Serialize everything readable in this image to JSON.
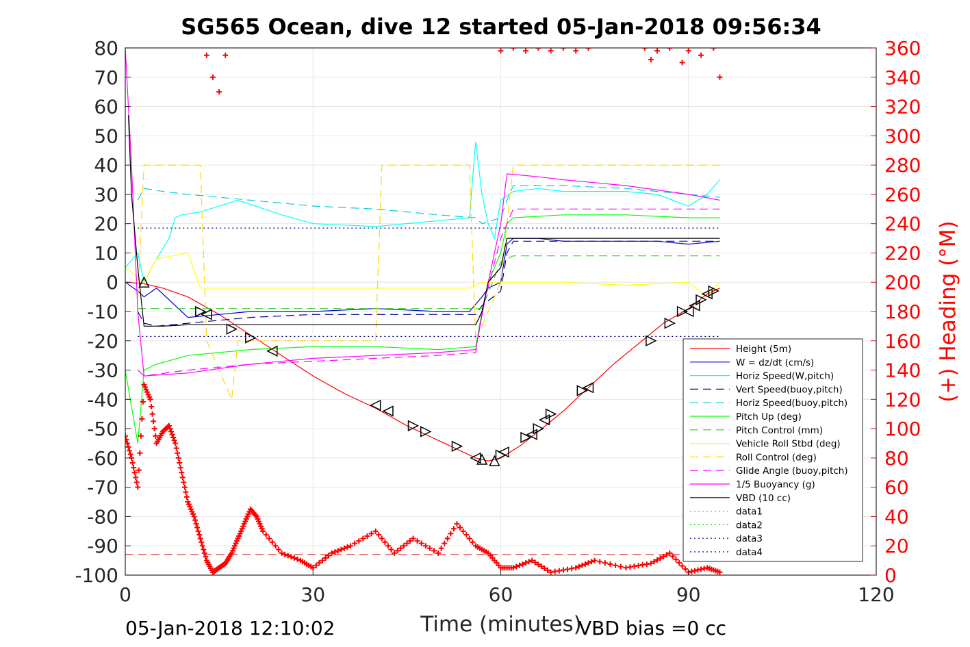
{
  "chart_data": {
    "type": "line",
    "title": "SG565 Ocean, dive 12 started 05-Jan-2018 09:56:34",
    "xlabel": "Time (minutes)",
    "ylabel": "",
    "ylabel_right": "(+) Heading (°M)",
    "xlim": [
      0,
      120
    ],
    "ylim": [
      -100,
      80
    ],
    "ylim_right": [
      0,
      360
    ],
    "xticks": [
      0,
      30,
      60,
      90,
      120
    ],
    "yticks": [
      -100,
      -90,
      -80,
      -70,
      -60,
      -50,
      -40,
      -30,
      -20,
      -10,
      0,
      10,
      20,
      30,
      40,
      50,
      60,
      70,
      80
    ],
    "yticks_right": [
      0,
      20,
      40,
      60,
      80,
      100,
      120,
      140,
      160,
      180,
      200,
      220,
      240,
      260,
      280,
      300,
      320,
      340,
      360
    ],
    "grid": true,
    "legend_position": "bottom-right",
    "footer_left": "05-Jan-2018 12:10:02",
    "footer_right": "VBD bias =0 cc",
    "series": [
      {
        "name": "Height (5m)",
        "color": "#ff0000",
        "style": "solid",
        "x": [
          0,
          3,
          6,
          10,
          15,
          20,
          25,
          30,
          35,
          40,
          45,
          50,
          54,
          56,
          58,
          60,
          63,
          66,
          70,
          74,
          78,
          82,
          86,
          90,
          93,
          95
        ],
        "y": [
          0,
          -0.5,
          -2,
          -5,
          -11,
          -18,
          -25,
          -32,
          -38,
          -43,
          -49,
          -54,
          -58,
          -60,
          -61,
          -60,
          -56,
          -51,
          -44,
          -36,
          -28,
          -21,
          -14,
          -9,
          -4,
          -2
        ]
      },
      {
        "name": "W = dz/dt (cm/s)",
        "color": "#0000cd",
        "style": "solid",
        "x": [
          0,
          2,
          3,
          5,
          8,
          10,
          15,
          20,
          30,
          40,
          50,
          55,
          57,
          58,
          60,
          61,
          62,
          66,
          70,
          80,
          85,
          90,
          95
        ],
        "y": [
          0,
          -3,
          -5,
          -2,
          -8,
          -12,
          -11,
          -10,
          -10,
          -9,
          -10,
          -10,
          -5,
          -2,
          0,
          13,
          15,
          15,
          14,
          14,
          14,
          13,
          14
        ]
      },
      {
        "name": "Horiz Speed(W,pitch)",
        "color": "#00ffff",
        "style": "solid",
        "x": [
          0,
          2,
          3,
          5,
          7,
          8,
          9,
          12,
          18,
          25,
          30,
          40,
          50,
          55,
          56,
          57,
          58,
          59,
          60,
          62,
          66,
          70,
          80,
          85,
          90,
          93,
          95
        ],
        "y": [
          5,
          10,
          0,
          8,
          15,
          22,
          23,
          24,
          28,
          23,
          20,
          19,
          21,
          22,
          48,
          30,
          20,
          15,
          28,
          31,
          32,
          31,
          31,
          30,
          26,
          30,
          35
        ]
      },
      {
        "name": "Vert Speed(buoy,pitch)",
        "color": "#00008b",
        "style": "dashed",
        "x": [
          2,
          3,
          5,
          10,
          20,
          30,
          40,
          50,
          56,
          57,
          60,
          61,
          62,
          70,
          80,
          90,
          95
        ],
        "y": [
          -10,
          -14,
          -15,
          -14,
          -12,
          -11,
          -11,
          -11,
          -11,
          -8,
          -3,
          10,
          14,
          14,
          14,
          14,
          14
        ]
      },
      {
        "name": "Horiz Speed(buoy,pitch)",
        "color": "#00ced1",
        "style": "dashed",
        "x": [
          2,
          3,
          6,
          10,
          20,
          30,
          40,
          50,
          56,
          57,
          60,
          61,
          62,
          70,
          80,
          90,
          95
        ],
        "y": [
          28,
          32,
          31,
          30,
          28,
          26,
          25,
          23,
          22,
          20,
          22,
          28,
          33,
          33,
          32,
          30,
          29
        ]
      },
      {
        "name": "Pitch Up (deg)",
        "color": "#00ff00",
        "style": "solid",
        "x": [
          0,
          2,
          3,
          5,
          10,
          20,
          30,
          40,
          50,
          56,
          57,
          58,
          60,
          61,
          62,
          70,
          80,
          90,
          95
        ],
        "y": [
          -30,
          -55,
          -30,
          -28,
          -25,
          -23,
          -22,
          -22,
          -23,
          -22,
          -10,
          0,
          10,
          20,
          22,
          23,
          23,
          22,
          22
        ]
      },
      {
        "name": "Pitch Control (mm)",
        "color": "#32cd32",
        "style": "dashed",
        "x": [
          2,
          3,
          10,
          56,
          57,
          60,
          62,
          95
        ],
        "y": [
          -9,
          -9,
          -9,
          -9,
          -9,
          7,
          9,
          9
        ]
      },
      {
        "name": "Vehicle Roll Stbd (deg)",
        "color": "#ffff00",
        "style": "solid",
        "x": [
          0,
          3,
          5,
          10,
          12,
          15,
          20,
          40,
          55,
          57,
          60,
          62,
          70,
          80,
          90,
          93,
          95
        ],
        "y": [
          5,
          0,
          8,
          10,
          -2,
          -2,
          -2,
          -2,
          -2,
          0,
          0,
          0,
          0,
          -1,
          0,
          -5,
          0
        ]
      },
      {
        "name": "Roll Control (deg)",
        "color": "#ffd700",
        "style": "dashed",
        "x": [
          2,
          3,
          10,
          12,
          13,
          17,
          18,
          40,
          41,
          55,
          56,
          60,
          62,
          95
        ],
        "y": [
          -5,
          40,
          40,
          40,
          -20,
          -40,
          -20,
          -20,
          40,
          40,
          -20,
          0,
          40,
          40
        ]
      },
      {
        "name": "Glide Angle (buoy,pitch)",
        "color": "#ff00ff",
        "style": "dashed",
        "x": [
          2,
          3,
          10,
          20,
          30,
          40,
          50,
          56,
          57,
          60,
          62,
          70,
          80,
          90,
          95
        ],
        "y": [
          -30,
          -32,
          -30,
          -28,
          -27,
          -26,
          -25,
          -24,
          -10,
          15,
          25,
          25,
          25,
          25,
          25
        ]
      },
      {
        "name": "1/5 Buoyancy (g)",
        "color": "#ff00ff",
        "style": "solid",
        "x": [
          0,
          1,
          2,
          3,
          10,
          20,
          30,
          40,
          50,
          56,
          58,
          60,
          61,
          66,
          70,
          80,
          90,
          95
        ],
        "y": [
          80,
          40,
          -10,
          -32,
          -31,
          -28,
          -26,
          -25,
          -24,
          -23,
          0,
          20,
          37,
          36,
          35,
          33,
          30,
          28
        ]
      },
      {
        "name": "VBD (10 cc)",
        "color": "#000000",
        "style": "solid",
        "x": [
          0.5,
          1,
          2,
          3,
          6,
          10,
          56,
          57,
          58,
          60,
          61,
          95
        ],
        "y": [
          57,
          30,
          5,
          -15,
          -15,
          -14.5,
          -14.5,
          -10,
          0,
          5,
          15,
          15
        ]
      },
      {
        "name": "data1",
        "color": "#32cd32",
        "style": "dotted",
        "x": [],
        "y": []
      },
      {
        "name": "data2",
        "color": "#00cd00",
        "style": "dotted",
        "x": [],
        "y": []
      },
      {
        "name": "data3",
        "color": "#000080",
        "style": "dotted",
        "x": [
          2,
          95
        ],
        "y": [
          18.5,
          18.5
        ]
      },
      {
        "name": "data4",
        "color": "#000080",
        "style": "dotted",
        "x": [
          2,
          95
        ],
        "y": [
          -18.5,
          -18.5
        ]
      }
    ],
    "heading": {
      "color": "#ff0000",
      "marker": "+",
      "x": [
        0,
        1,
        2,
        3,
        4,
        5,
        6,
        7,
        8,
        9,
        10,
        11,
        12,
        13,
        14,
        15,
        16,
        17,
        18,
        19,
        20,
        21,
        22,
        25,
        28,
        30,
        33,
        36,
        40,
        43,
        46,
        50,
        53,
        56,
        58,
        60,
        62,
        65,
        68,
        72,
        75,
        80,
        84,
        87,
        90,
        93,
        95
      ],
      "y": [
        95,
        80,
        60,
        130,
        120,
        90,
        98,
        102,
        90,
        70,
        50,
        40,
        25,
        10,
        2,
        5,
        8,
        15,
        25,
        35,
        45,
        40,
        30,
        15,
        10,
        5,
        15,
        20,
        30,
        15,
        25,
        15,
        35,
        20,
        15,
        5,
        5,
        10,
        2,
        5,
        10,
        5,
        8,
        15,
        2,
        5,
        2
      ]
    },
    "heading_high": {
      "x": [
        13,
        14,
        15,
        16,
        60,
        62,
        64,
        66,
        68,
        70,
        72,
        74,
        83,
        84,
        85,
        87,
        89,
        90,
        92,
        94,
        95
      ],
      "y": [
        355,
        340,
        330,
        355,
        358,
        360,
        358,
        360,
        358,
        360,
        358,
        360,
        360,
        352,
        358,
        360,
        350,
        358,
        355,
        360,
        340
      ]
    },
    "heading_ref": {
      "y": 14,
      "color": "#cc0000",
      "style": "dashed"
    },
    "markers": {
      "right": [
        [
          12,
          -10
        ],
        [
          17,
          -16
        ],
        [
          20,
          -19
        ],
        [
          46,
          -49
        ],
        [
          48,
          -51
        ],
        [
          53,
          -56
        ],
        [
          60,
          -59
        ],
        [
          64,
          -53
        ],
        [
          66,
          -50
        ],
        [
          68,
          -45
        ],
        [
          73,
          -37
        ],
        [
          84,
          -20
        ],
        [
          87,
          -14
        ],
        [
          89,
          -10
        ],
        [
          92,
          -6
        ],
        [
          94,
          -3
        ]
      ],
      "left": [
        [
          13,
          -11
        ],
        [
          23.5,
          -23.5
        ],
        [
          40,
          -42
        ],
        [
          42,
          -44
        ],
        [
          56,
          -60
        ],
        [
          60.5,
          -58
        ],
        [
          65,
          -52
        ],
        [
          67,
          -47
        ],
        [
          74,
          -36
        ],
        [
          90,
          -10
        ],
        [
          91,
          -8
        ],
        [
          93,
          -4
        ]
      ],
      "up": [
        [
          3,
          0
        ],
        [
          57,
          -60.5
        ],
        [
          59,
          -61
        ]
      ]
    }
  }
}
